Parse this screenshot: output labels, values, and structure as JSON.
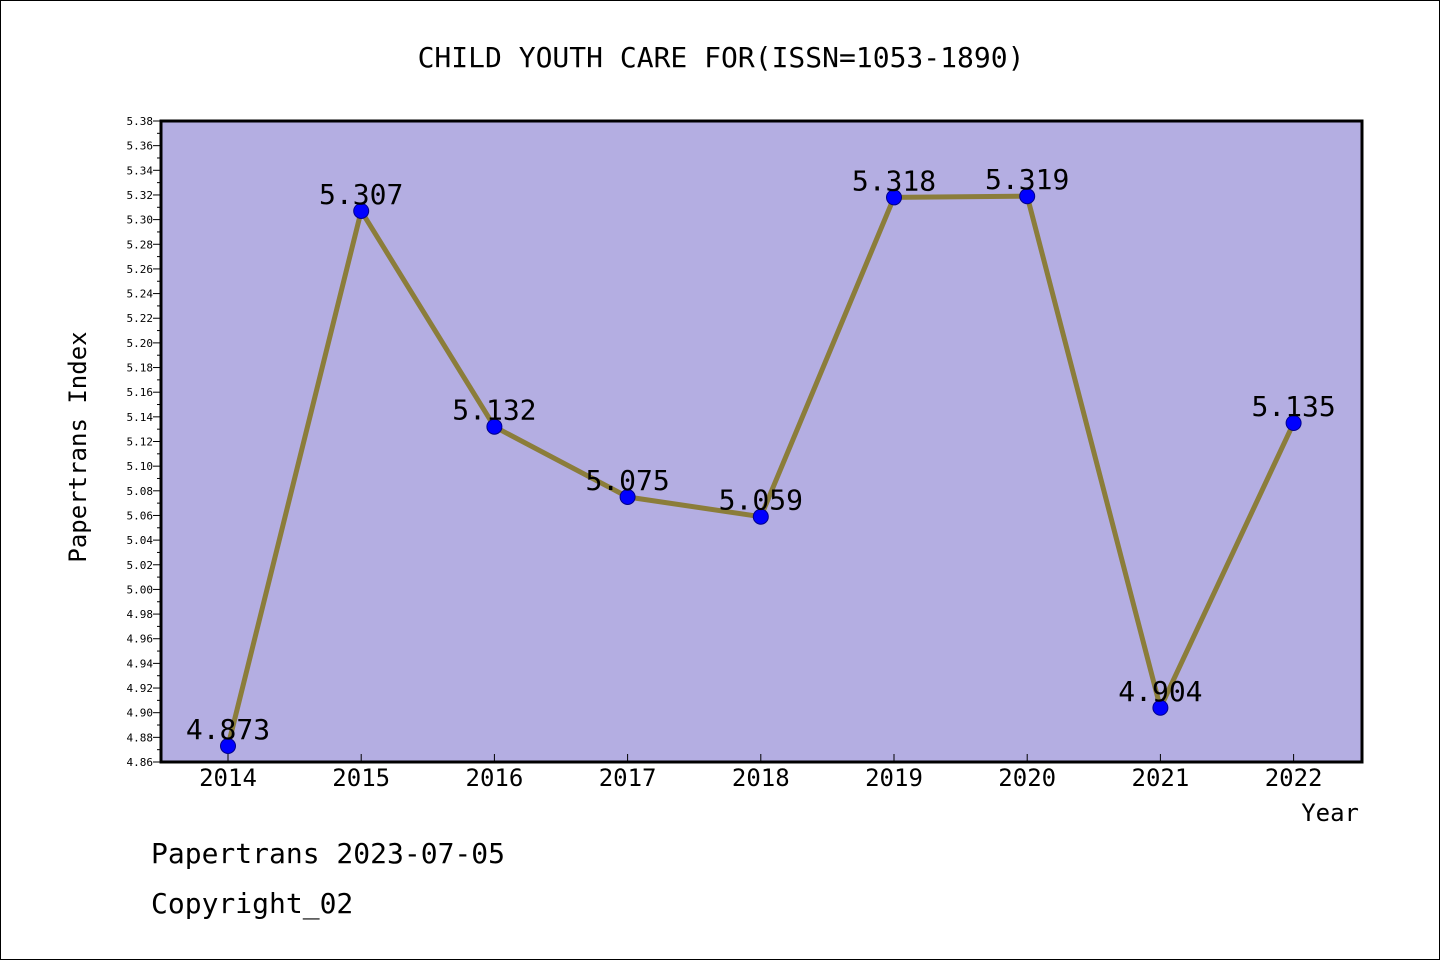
{
  "chart_data": {
    "type": "line",
    "title": "CHILD YOUTH CARE FOR(ISSN=1053-1890)",
    "xlabel": "Year",
    "ylabel": "Papertrans Index",
    "categories": [
      "2014",
      "2015",
      "2016",
      "2017",
      "2018",
      "2019",
      "2020",
      "2021",
      "2022"
    ],
    "series": [
      {
        "values": [
          4.873,
          5.307,
          5.132,
          5.075,
          5.059,
          5.318,
          5.319,
          4.904,
          5.135
        ],
        "labels": [
          "4.873",
          "5.307",
          "5.132",
          "5.075",
          "5.059",
          "5.318",
          "5.319",
          "4.904",
          "5.135"
        ]
      }
    ],
    "ylim": [
      4.86,
      5.38
    ],
    "ytick_step": 0.02,
    "ytick_decimals": 2,
    "grid": false,
    "colors": {
      "plot_background": "#b4aee2",
      "line": "#8b7d3a",
      "marker": "#0000ff",
      "marker_edge": "#00008b"
    }
  },
  "footer": {
    "date_text": "Papertrans 2023-07-05",
    "copyright_text": "Copyright_02"
  }
}
